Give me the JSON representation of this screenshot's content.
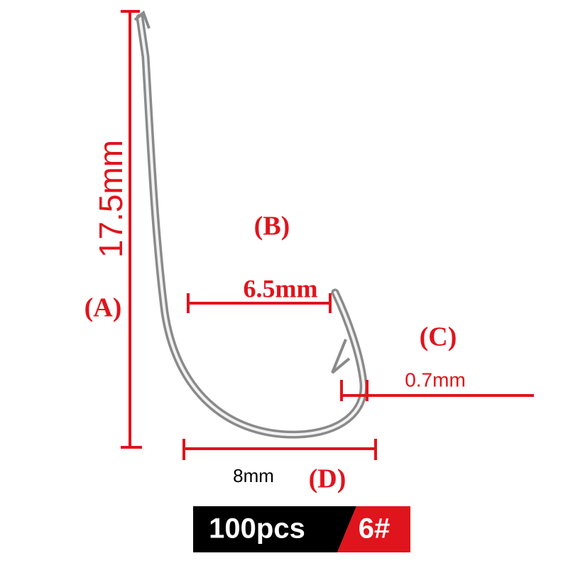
{
  "dimensions": {
    "a": {
      "label": "(A)",
      "measure": "17.5mm"
    },
    "b": {
      "label": "(B)",
      "measure": "6.5mm"
    },
    "c": {
      "label": "(C)",
      "measure": "0.7mm"
    },
    "d": {
      "label": "(D)",
      "measure": "8mm"
    }
  },
  "badge": {
    "quantity": "100pcs",
    "size": "6#"
  }
}
